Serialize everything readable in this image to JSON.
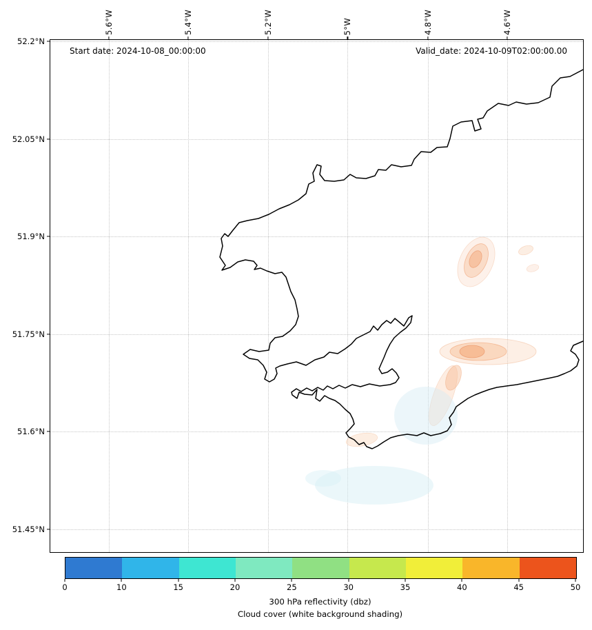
{
  "figure": {
    "annotations": {
      "start_date": "Start date: 2024-10-08_00:00:00",
      "valid_date": "Valid_date: 2024-10-09T02:00:00.00"
    },
    "axes": {
      "x_ticks": [
        {
          "label": "5.6°W",
          "pos": 11.0
        },
        {
          "label": "5.4°W",
          "pos": 25.9
        },
        {
          "label": "5.2°W",
          "pos": 40.9
        },
        {
          "label": "5°W",
          "pos": 55.8
        },
        {
          "label": "4.8°W",
          "pos": 70.9
        },
        {
          "label": "4.6°W",
          "pos": 85.8
        }
      ],
      "y_ticks": [
        {
          "label": "52.2°N",
          "pos": 0.3
        },
        {
          "label": "52.05°N",
          "pos": 19.4
        },
        {
          "label": "51.9°N",
          "pos": 38.4
        },
        {
          "label": "51.75°N",
          "pos": 57.5
        },
        {
          "label": "51.6°N",
          "pos": 76.4
        },
        {
          "label": "51.45°N",
          "pos": 95.6
        }
      ]
    },
    "map": {
      "region": "southwest-wales-coastline",
      "grid_color": "#c6c6c6",
      "coast_color": "#000000",
      "reflectivity_shading_color": "#f3b58c",
      "cloud_shading_color": "#d8edf5"
    },
    "colorbar": {
      "ticks": [
        "0",
        "10",
        "15",
        "20",
        "25",
        "30",
        "35",
        "40",
        "45",
        "50"
      ],
      "segment_colors": [
        "#2f7ad1",
        "#30b5e9",
        "#3ee6d2",
        "#7fe9c0",
        "#90e083",
        "#c6e84d",
        "#f1ee39",
        "#f9b62a",
        "#ec541c"
      ],
      "title_line1": "300 hPa reflectivity (dbz)",
      "title_line2": "Cloud cover (white background shading)"
    }
  }
}
